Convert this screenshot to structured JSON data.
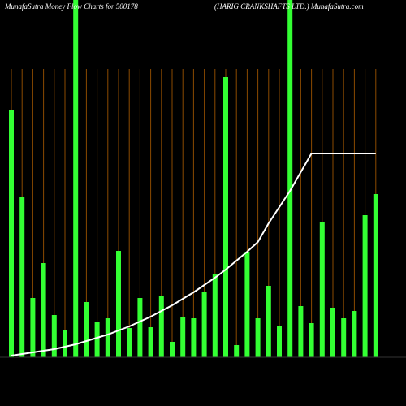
{
  "chart_data": {
    "type": "bar",
    "title": "MunafaSutra  Money Flow  Charts for 500178",
    "subtitle": "(HARIG CRANKSHAFTS LTD.) MunafaSutra.com",
    "values": [
      305,
      197,
      73,
      116,
      52,
      33,
      440,
      68,
      44,
      48,
      131,
      36,
      73,
      37,
      75,
      19,
      49,
      48,
      81,
      103,
      345,
      15,
      130,
      48,
      88,
      38,
      440,
      63,
      42,
      167,
      61,
      48,
      57,
      175,
      201
    ],
    "color": "#33ff33",
    "gridline_color": "#8b4a00",
    "line": {
      "color": "#ffffff",
      "values": [
        2,
        4,
        6,
        8,
        10,
        13,
        16,
        20,
        24,
        28,
        33,
        38,
        44,
        50,
        57,
        64,
        72,
        80,
        89,
        98,
        108,
        119,
        130,
        142,
        165,
        185,
        205,
        228,
        251,
        251,
        251,
        251,
        251,
        251,
        251
      ]
    },
    "ylim": [
      0,
      440
    ]
  }
}
